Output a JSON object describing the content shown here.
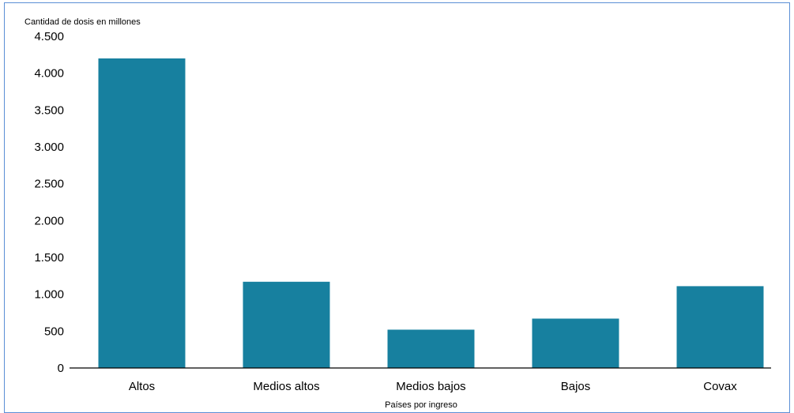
{
  "colors": {
    "bar": "#17809f",
    "frame_border": "#5b8fd6",
    "axis": "#000000"
  },
  "chart_data": {
    "type": "bar",
    "title": "",
    "ylabel": "Cantidad de dosis en millones",
    "xlabel": "Países por ingreso",
    "categories": [
      "Altos",
      "Medios altos",
      "Medios bajos",
      "Bajos",
      "Covax"
    ],
    "values": [
      4200,
      1170,
      520,
      670,
      1110
    ],
    "ylim": [
      0,
      4500
    ],
    "yticks": [
      0,
      500,
      1000,
      1500,
      2000,
      2500,
      3000,
      3500,
      4000,
      4500
    ],
    "ytick_labels": [
      "0",
      "500",
      "1.000",
      "1.500",
      "2.000",
      "2.500",
      "3.000",
      "3.500",
      "4.000",
      "4.500"
    ],
    "grid": false,
    "legend": "none"
  }
}
